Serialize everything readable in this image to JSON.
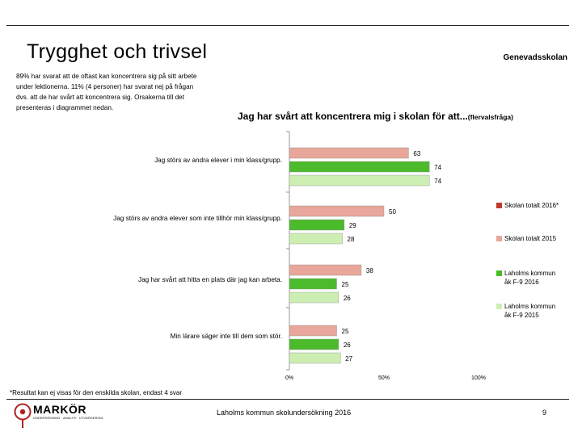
{
  "page": {
    "title": "Trygghet och trivsel",
    "school": "Genevadsskolan",
    "intro": "89% har svarat att de oftast kan koncentrera sig på sitt arbete\nunder lektionerna. 11% (4 personer) har svarat nej på frågan\ndvs. att de har svårt att koncentrera sig. Orsakerna till det\npresenteras i diagrammet nedan.",
    "question": "Jag har svårt att koncentrera mig i skolan för att...",
    "question_suffix": "(flervalsfråga)",
    "footnote": "*Resultat kan ej visas för den enskilda skolan, endast 4 svar",
    "footer": "Laholms kommun skolundersökning 2016",
    "page_number": "9",
    "logo": {
      "brand": "MARKÖR",
      "tagline": "UNDERSÖKNING · ANALYS · UTVÄRDERING"
    }
  },
  "chart_data": {
    "type": "bar",
    "orientation": "horizontal",
    "title": "Jag har svårt att koncentrera mig i skolan för att...(flervalsfråga)",
    "categories": [
      "Jag störs av andra elever i min klass/grupp.",
      "Jag störs av andra elever som inte tillhör min klass/grupp.",
      "Jag har svårt att hitta en plats där jag kan arbeta.",
      "Min lärare säger inte till dem som stör."
    ],
    "series": [
      {
        "name": "Skolan totalt 2016*",
        "color": "#c0392b",
        "values": [
          null,
          null,
          null,
          null
        ]
      },
      {
        "name": "Skolan totalt 2015",
        "color": "#e8a79a",
        "values": [
          63,
          50,
          38,
          25
        ]
      },
      {
        "name": "Laholms kommun åk F-9 2016",
        "color": "#4cbb2b",
        "values": [
          74,
          29,
          25,
          26
        ]
      },
      {
        "name": "Laholms kommun åk F-9 2015",
        "color": "#cdeeb2",
        "values": [
          74,
          28,
          26,
          27
        ]
      }
    ],
    "xlim": [
      0,
      100
    ],
    "xticks": [
      "0%",
      "50%",
      "100%"
    ],
    "units": "%"
  }
}
